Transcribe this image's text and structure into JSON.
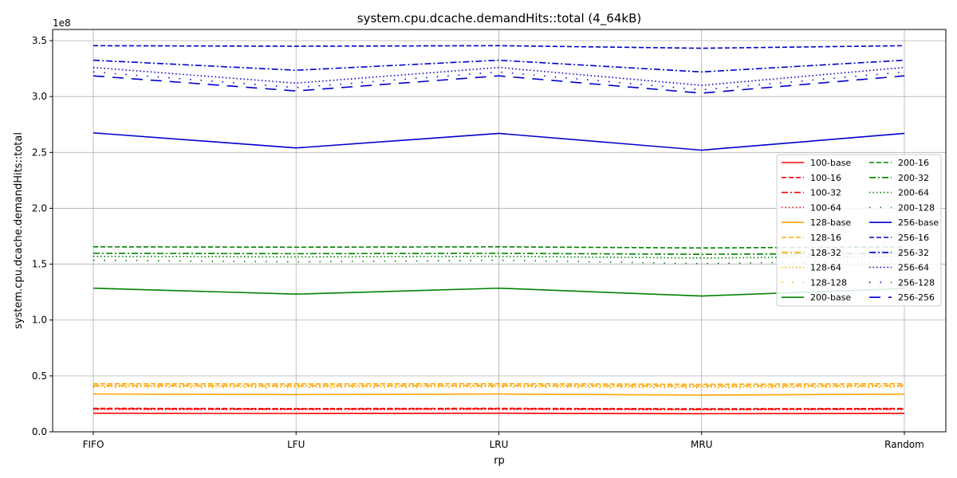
{
  "chart_data": {
    "type": "line",
    "title": "system.cpu.dcache.demandHits::total (4_64kB)",
    "xlabel": "rp",
    "ylabel": "system.cpu.dcache.demandHits::total",
    "y_multiplier_label": "1e8",
    "categories": [
      "FIFO",
      "LFU",
      "LRU",
      "MRU",
      "Random"
    ],
    "ylim": [
      0,
      3.6
    ],
    "yticks": [
      0.0,
      0.5,
      1.0,
      1.5,
      2.0,
      2.5,
      3.0,
      3.5
    ],
    "ytick_labels": [
      "0.0",
      "0.5",
      "1.0",
      "1.5",
      "2.0",
      "2.5",
      "3.0",
      "3.5"
    ],
    "grid": true,
    "legend_position": "center-right",
    "series": [
      {
        "name": "100-base",
        "color": "#ff0000",
        "style": "solid",
        "values": [
          0.166,
          0.164,
          0.166,
          0.162,
          0.165
        ]
      },
      {
        "name": "100-16",
        "color": "#ff0000",
        "style": "dashed",
        "values": [
          0.21,
          0.208,
          0.21,
          0.206,
          0.209
        ]
      },
      {
        "name": "100-32",
        "color": "#ff0000",
        "style": "dashdot",
        "values": [
          0.205,
          0.203,
          0.205,
          0.201,
          0.204
        ]
      },
      {
        "name": "100-64",
        "color": "#ff0000",
        "style": "dotted",
        "values": [
          0.2,
          0.198,
          0.2,
          0.196,
          0.199
        ]
      },
      {
        "name": "128-base",
        "color": "#ffa500",
        "style": "solid",
        "values": [
          0.338,
          0.333,
          0.338,
          0.328,
          0.337
        ]
      },
      {
        "name": "128-16",
        "color": "#ffa500",
        "style": "dashed",
        "values": [
          0.43,
          0.428,
          0.43,
          0.425,
          0.43
        ]
      },
      {
        "name": "128-32",
        "color": "#ffa500",
        "style": "dashdot",
        "values": [
          0.415,
          0.412,
          0.415,
          0.41,
          0.414
        ]
      },
      {
        "name": "128-64",
        "color": "#ffa500",
        "style": "dotted",
        "values": [
          0.405,
          0.402,
          0.405,
          0.4,
          0.404
        ]
      },
      {
        "name": "128-128",
        "color": "#ffa500",
        "style": "sparse",
        "values": [
          0.398,
          0.395,
          0.398,
          0.393,
          0.397
        ]
      },
      {
        "name": "200-base",
        "color": "#008000",
        "style": "solid",
        "values": [
          1.285,
          1.232,
          1.285,
          1.215,
          1.282
        ]
      },
      {
        "name": "200-16",
        "color": "#008000",
        "style": "dashed",
        "values": [
          1.655,
          1.652,
          1.655,
          1.645,
          1.655
        ]
      },
      {
        "name": "200-32",
        "color": "#008000",
        "style": "dashdot",
        "values": [
          1.597,
          1.594,
          1.597,
          1.588,
          1.597
        ]
      },
      {
        "name": "200-64",
        "color": "#008000",
        "style": "dotted",
        "values": [
          1.57,
          1.565,
          1.57,
          1.555,
          1.568
        ]
      },
      {
        "name": "200-128",
        "color": "#008000",
        "style": "sparse",
        "values": [
          1.535,
          1.52,
          1.535,
          1.505,
          1.533
        ]
      },
      {
        "name": "256-base",
        "color": "#0000cd",
        "style": "solid",
        "values": [
          2.675,
          2.54,
          2.67,
          2.52,
          2.67
        ]
      },
      {
        "name": "256-16",
        "color": "#0000cd",
        "style": "dashed",
        "values": [
          3.455,
          3.45,
          3.455,
          3.432,
          3.455
        ]
      },
      {
        "name": "256-32",
        "color": "#0000cd",
        "style": "dashdot",
        "values": [
          3.325,
          3.235,
          3.325,
          3.22,
          3.325
        ]
      },
      {
        "name": "256-64",
        "color": "#0000cd",
        "style": "dotted",
        "values": [
          3.26,
          3.12,
          3.26,
          3.1,
          3.26
        ]
      },
      {
        "name": "256-128",
        "color": "#0000cd",
        "style": "sparse",
        "values": [
          3.22,
          3.08,
          3.22,
          3.06,
          3.22
        ]
      },
      {
        "name": "256-256",
        "color": "#0000cd",
        "style": "longdash",
        "values": [
          3.185,
          3.05,
          3.185,
          3.03,
          3.185
        ]
      }
    ]
  }
}
